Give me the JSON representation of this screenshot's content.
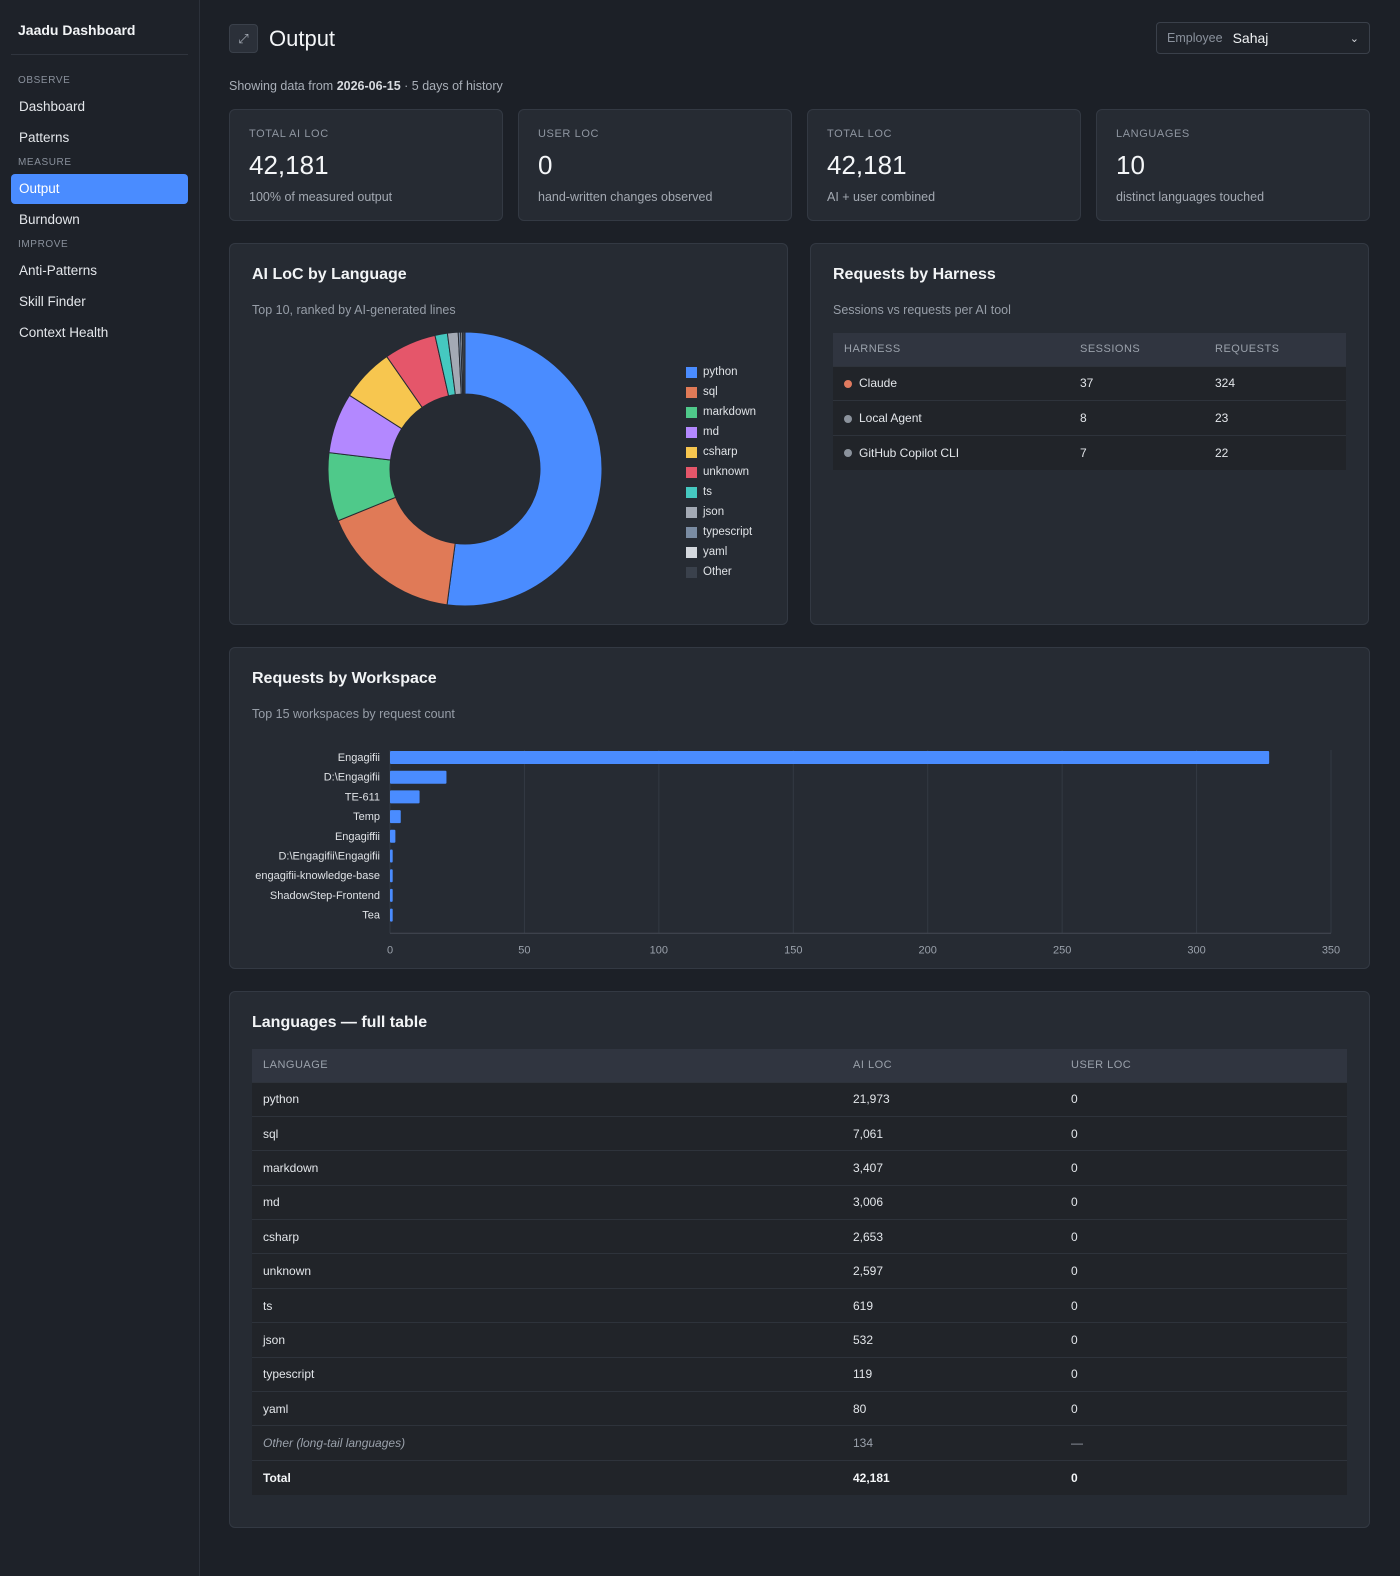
{
  "brand": "Jaadu Dashboard",
  "nav": {
    "observe_label": "OBSERVE",
    "measure_label": "MEASURE",
    "improve_label": "IMPROVE",
    "dashboard": "Dashboard",
    "patterns": "Patterns",
    "output": "Output",
    "burndown": "Burndown",
    "anti_patterns": "Anti-Patterns",
    "skill_finder": "Skill Finder",
    "context_health": "Context Health"
  },
  "header": {
    "title": "Output",
    "expand_icon": "expand-icon",
    "employee_label": "Employee",
    "employee_value": "Sahaj"
  },
  "subtitle": {
    "prefix": "Showing data from ",
    "date": "2026-06-15",
    "suffix": " · 5 days of history"
  },
  "stats": [
    {
      "label": "TOTAL AI LOC",
      "value": "42,181",
      "sub": "100% of measured output"
    },
    {
      "label": "USER LOC",
      "value": "0",
      "sub": "hand-written changes observed"
    },
    {
      "label": "TOTAL LOC",
      "value": "42,181",
      "sub": "AI + user combined"
    },
    {
      "label": "LANGUAGES",
      "value": "10",
      "sub": "distinct languages touched"
    }
  ],
  "lang_chart": {
    "title": "AI LoC by Language",
    "desc": "Top 10, ranked by AI-generated lines"
  },
  "harness": {
    "title": "Requests by Harness",
    "desc": "Sessions vs requests per AI tool",
    "headers": [
      "HARNESS",
      "SESSIONS",
      "REQUESTS"
    ],
    "rows": [
      {
        "name": "Claude",
        "sessions": "37",
        "requests": "324",
        "color": "#e07a5f"
      },
      {
        "name": "Local Agent",
        "sessions": "8",
        "requests": "23",
        "color": "#8b929c"
      },
      {
        "name": "GitHub Copilot CLI",
        "sessions": "7",
        "requests": "22",
        "color": "#8b929c"
      }
    ]
  },
  "workspace": {
    "title": "Requests by Workspace",
    "desc": "Top 15 workspaces by request count"
  },
  "lang_table": {
    "title": "Languages — full table",
    "headers": [
      "LANGUAGE",
      "AI LOC",
      "USER LOC"
    ],
    "rows": [
      {
        "lang": "python",
        "ai": "21,973",
        "user": "0"
      },
      {
        "lang": "sql",
        "ai": "7,061",
        "user": "0"
      },
      {
        "lang": "markdown",
        "ai": "3,407",
        "user": "0"
      },
      {
        "lang": "md",
        "ai": "3,006",
        "user": "0"
      },
      {
        "lang": "csharp",
        "ai": "2,653",
        "user": "0"
      },
      {
        "lang": "unknown",
        "ai": "2,597",
        "user": "0"
      },
      {
        "lang": "ts",
        "ai": "619",
        "user": "0"
      },
      {
        "lang": "json",
        "ai": "532",
        "user": "0"
      },
      {
        "lang": "typescript",
        "ai": "119",
        "user": "0"
      },
      {
        "lang": "yaml",
        "ai": "80",
        "user": "0"
      }
    ],
    "other": {
      "lang": "Other (long-tail languages)",
      "ai": "134",
      "user": "—"
    },
    "total": {
      "lang": "Total",
      "ai": "42,181",
      "user": "0"
    }
  },
  "chart_data": [
    {
      "type": "pie",
      "categories": [
        "python",
        "sql",
        "markdown",
        "md",
        "csharp",
        "unknown",
        "ts",
        "json",
        "typescript",
        "yaml",
        "Other"
      ],
      "values": [
        21973,
        7061,
        3407,
        3006,
        2653,
        2597,
        619,
        532,
        119,
        80,
        134
      ],
      "colors": [
        "#4a8cff",
        "#e07a57",
        "#4fc98a",
        "#b388ff",
        "#f7c64f",
        "#e5566a",
        "#45c8c0",
        "#a3a9b4",
        "#7a8ca3",
        "#d4d8de",
        "#3a414c"
      ],
      "legend": "right"
    },
    {
      "type": "bar",
      "orientation": "horizontal",
      "categories": [
        "Engagifii",
        "D:\\Engagifii",
        "TE-611",
        "Temp",
        "Engagiffii",
        "D:\\Engagifii\\Engagifii",
        "engagifii-knowledge-base",
        "ShadowStep-Frontend",
        "Tea"
      ],
      "values": [
        327,
        21,
        11,
        4,
        2,
        1,
        1,
        1,
        1
      ],
      "xlim": [
        0,
        350
      ],
      "xticks": [
        0,
        50,
        100,
        150,
        200,
        250,
        300,
        350
      ],
      "color": "#4a8cff",
      "grid": true
    }
  ]
}
